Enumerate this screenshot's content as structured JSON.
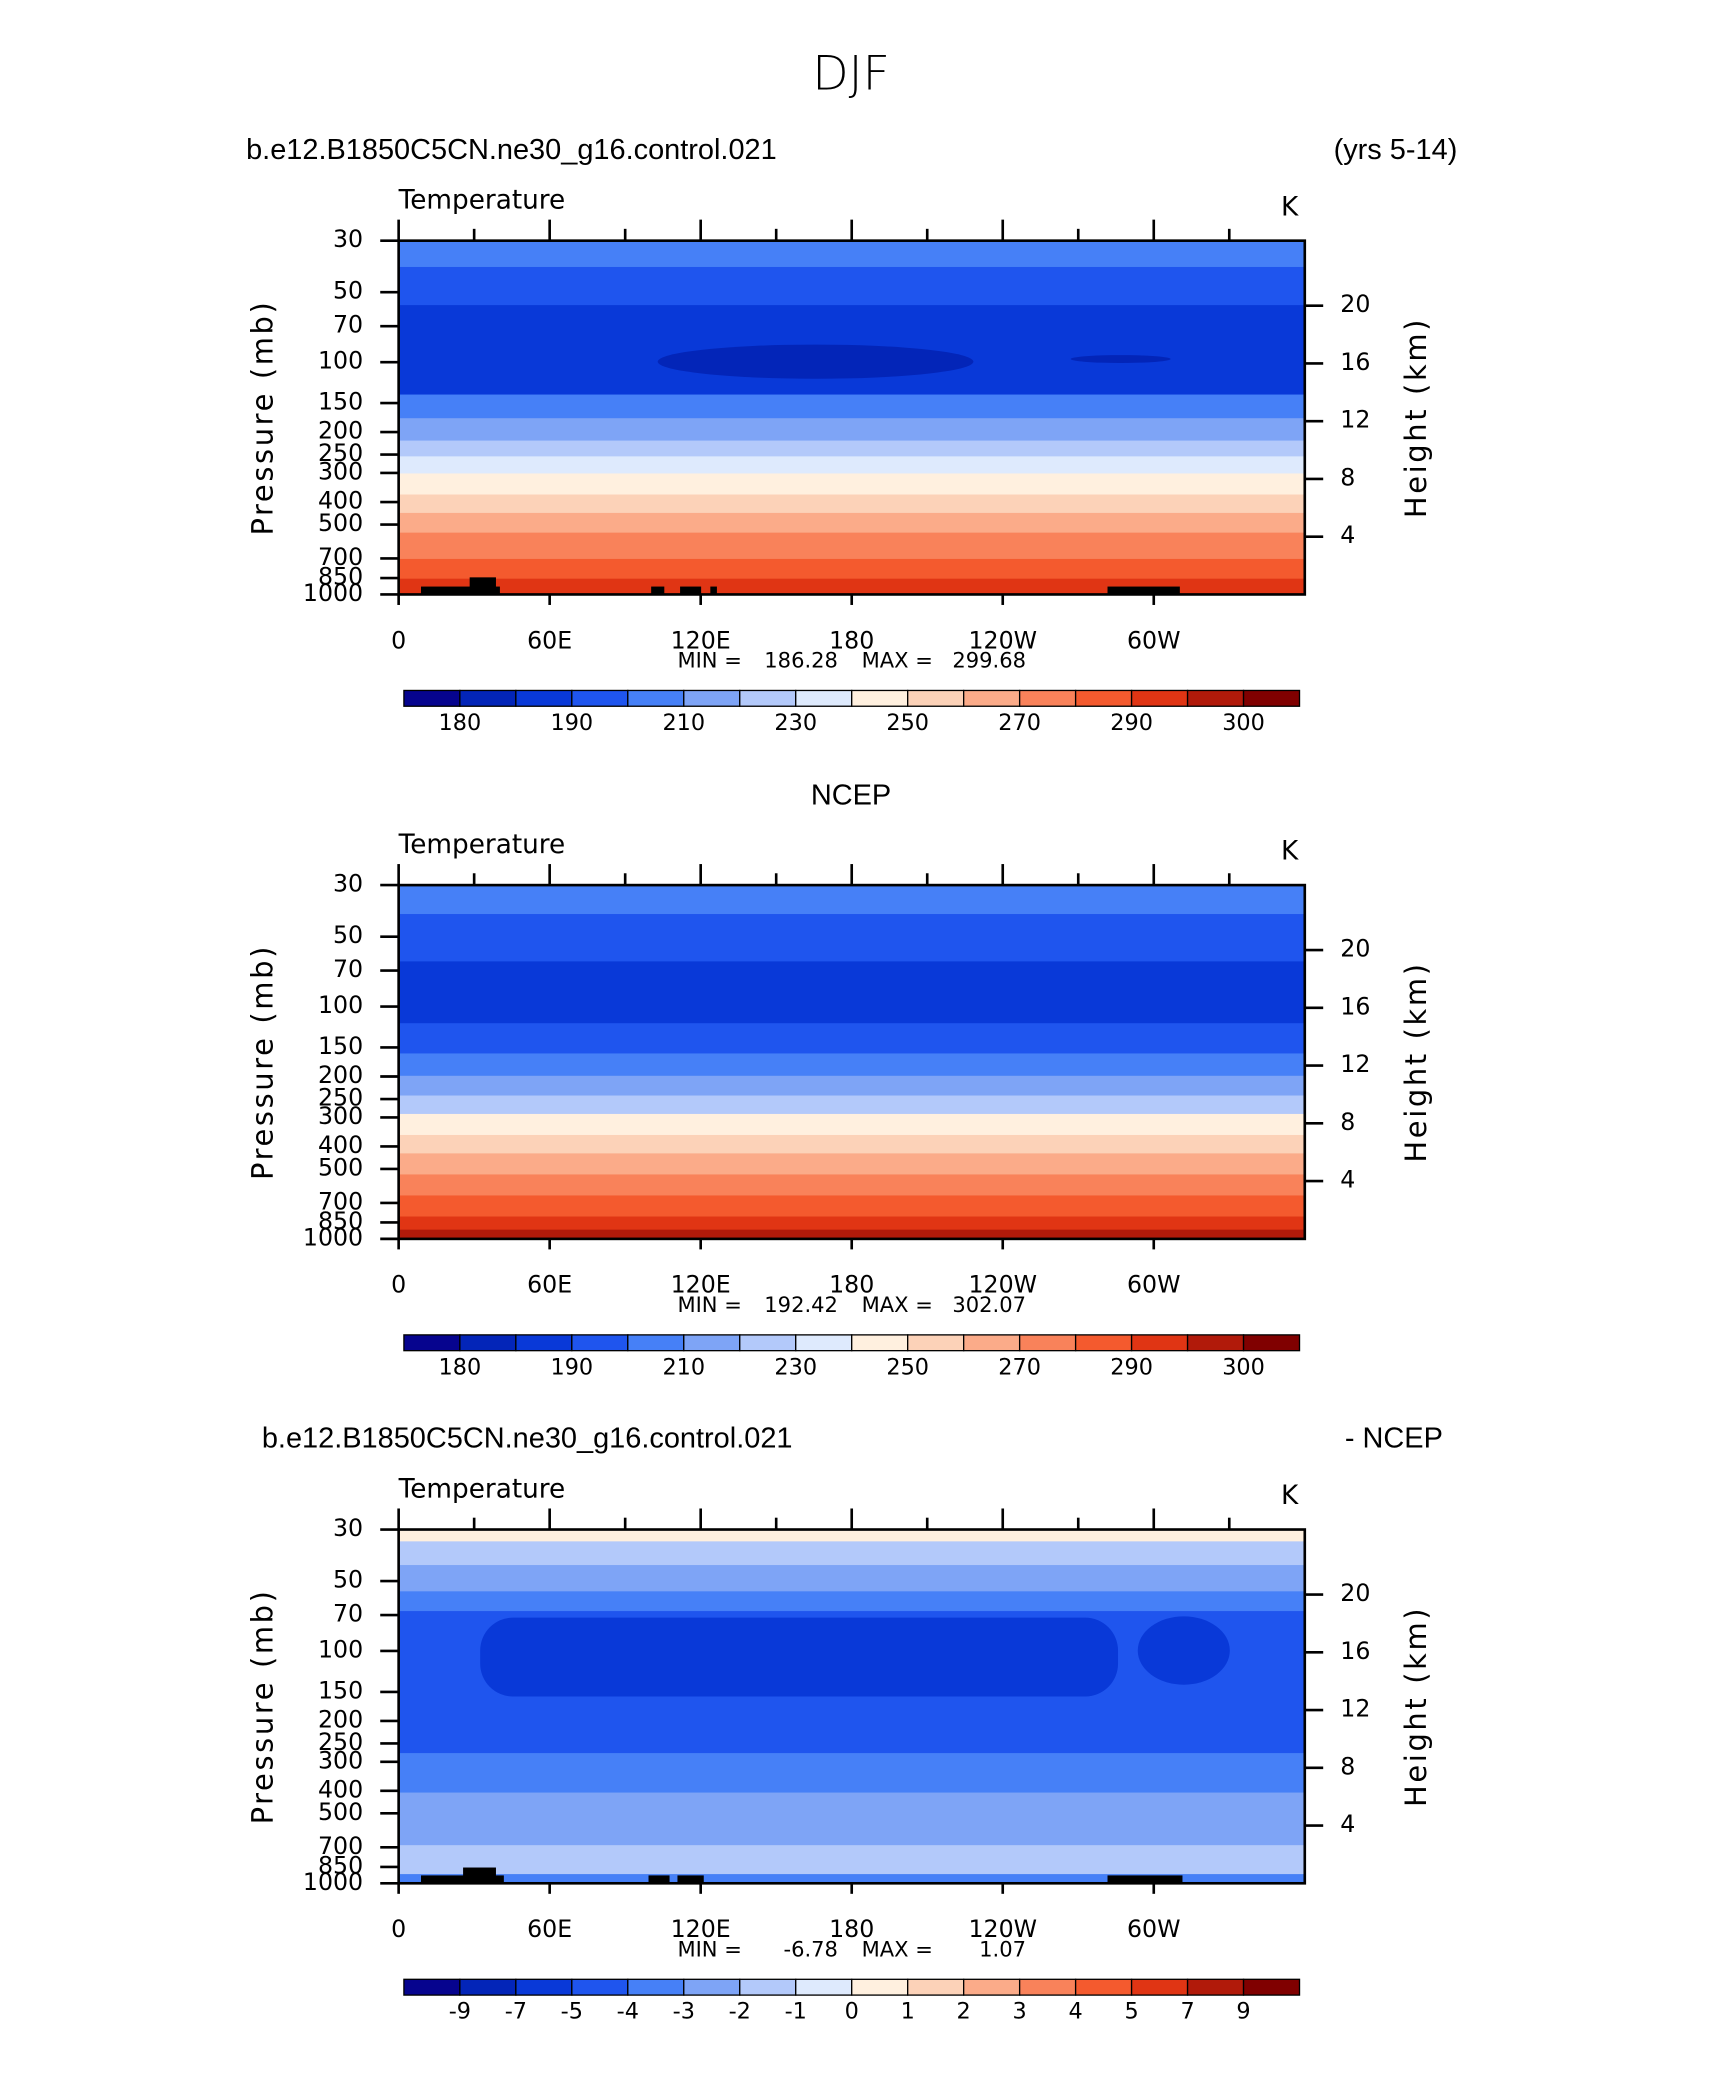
{
  "title": "DJF",
  "chart_data": [
    {
      "type": "contour",
      "header_left": "b.e12.B1850C5CN.ne30_g16.control.021",
      "header_right": "(yrs 5-14)",
      "title": "Temperature",
      "units": "K",
      "ylabel": "Pressure (mb)",
      "y2label": "Height (km)",
      "ylim": [
        1000,
        30
      ],
      "log_y": true,
      "yticks": [
        30,
        50,
        70,
        100,
        150,
        200,
        250,
        300,
        400,
        500,
        700,
        850,
        1000
      ],
      "y2lim": [
        0,
        24.5
      ],
      "y2ticks": [
        4,
        8,
        12,
        16,
        20
      ],
      "xlim": [
        0,
        360
      ],
      "xticks": [
        0,
        {
          "value": 60,
          "label": "60E"
        },
        {
          "value": 120,
          "label": "120E"
        },
        180,
        {
          "value": 240,
          "label": "120W"
        },
        {
          "value": 300,
          "label": "60W"
        }
      ],
      "min_label": "MIN =",
      "min": 186.28,
      "max_label": "MAX =",
      "max": 299.68,
      "colorbar": {
        "colors": [
          "#06048e",
          "#0325b8",
          "#0939d8",
          "#1f55ee",
          "#4680f7",
          "#7ea4f6",
          "#b3c9fa",
          "#deeafd",
          "#fff0df",
          "#fcd2b8",
          "#fbab89",
          "#f9825a",
          "#f45a2e",
          "#e03514",
          "#b11a0a",
          "#800000"
        ],
        "levels": [
          180,
          null,
          190,
          null,
          210,
          null,
          230,
          null,
          250,
          null,
          270,
          null,
          290,
          null,
          300
        ]
      }
    },
    {
      "type": "contour",
      "header": "NCEP",
      "title": "Temperature",
      "units": "K",
      "ylabel": "Pressure (mb)",
      "y2label": "Height (km)",
      "ylim": [
        1000,
        30
      ],
      "log_y": true,
      "yticks": [
        30,
        50,
        70,
        100,
        150,
        200,
        250,
        300,
        400,
        500,
        700,
        850,
        1000
      ],
      "y2lim": [
        0,
        24.5
      ],
      "y2ticks": [
        4,
        8,
        12,
        16,
        20
      ],
      "xlim": [
        0,
        360
      ],
      "xticks": [
        0,
        {
          "value": 60,
          "label": "60E"
        },
        {
          "value": 120,
          "label": "120E"
        },
        180,
        {
          "value": 240,
          "label": "120W"
        },
        {
          "value": 300,
          "label": "60W"
        }
      ],
      "min_label": "MIN =",
      "min": 192.42,
      "max_label": "MAX =",
      "max": 302.07,
      "colorbar": {
        "colors": [
          "#06048e",
          "#0325b8",
          "#0939d8",
          "#1f55ee",
          "#4680f7",
          "#7ea4f6",
          "#b3c9fa",
          "#deeafd",
          "#fff0df",
          "#fcd2b8",
          "#fbab89",
          "#f9825a",
          "#f45a2e",
          "#e03514",
          "#b11a0a",
          "#800000"
        ],
        "levels": [
          180,
          null,
          190,
          null,
          210,
          null,
          230,
          null,
          250,
          null,
          270,
          null,
          290,
          null,
          300
        ]
      }
    },
    {
      "type": "contour",
      "header_left": "b.e12.B1850C5CN.ne30_g16.control.021",
      "header_right": "- NCEP",
      "title": "Temperature",
      "units": "K",
      "ylabel": "Pressure (mb)",
      "y2label": "Height (km)",
      "ylim": [
        1000,
        30
      ],
      "log_y": true,
      "yticks": [
        30,
        50,
        70,
        100,
        150,
        200,
        250,
        300,
        400,
        500,
        700,
        850,
        1000
      ],
      "y2lim": [
        0,
        24.5
      ],
      "y2ticks": [
        4,
        8,
        12,
        16,
        20
      ],
      "xlim": [
        0,
        360
      ],
      "xticks": [
        0,
        {
          "value": 60,
          "label": "60E"
        },
        {
          "value": 120,
          "label": "120E"
        },
        180,
        {
          "value": 240,
          "label": "120W"
        },
        {
          "value": 300,
          "label": "60W"
        }
      ],
      "min_label": "MIN =",
      "min": -6.78,
      "max_label": "MAX =",
      "max": 1.07,
      "colorbar": {
        "colors": [
          "#06048e",
          "#0325b8",
          "#0939d8",
          "#1f55ee",
          "#4680f7",
          "#7ea4f6",
          "#b3c9fa",
          "#deeafd",
          "#fff0df",
          "#fcd2b8",
          "#fbab89",
          "#f9825a",
          "#f45a2e",
          "#e03514",
          "#b11a0a",
          "#800000"
        ],
        "levels": [
          -9,
          -7,
          -5,
          -4,
          -3,
          -2,
          -1,
          0,
          1,
          2,
          3,
          4,
          5,
          7,
          9
        ]
      }
    }
  ]
}
